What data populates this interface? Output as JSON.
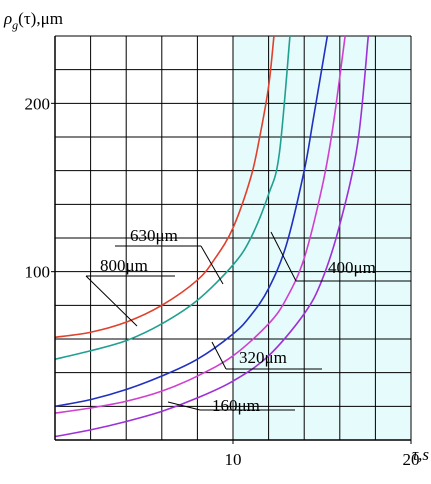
{
  "chart_data": {
    "type": "line",
    "ylabel": "ρ_g(τ),μm",
    "ylabel_parts": {
      "symbol": "ρ",
      "subscript": "g",
      "tail": "(τ),μm"
    },
    "xlabel": "τ,s",
    "xlim": [
      0,
      20
    ],
    "ylim": [
      0,
      240
    ],
    "x_ticks": [
      10,
      20
    ],
    "x_tick_labels": [
      "10",
      "20"
    ],
    "y_ticks": [
      100,
      200
    ],
    "y_tick_labels": [
      "100",
      "200"
    ],
    "grid": true,
    "grid_x_step": 2,
    "grid_y_step": 20,
    "background_colors": {
      "plain": "#ffffff",
      "tinted": "#e6fbfb"
    },
    "series": [
      {
        "name": "630μm",
        "color": "#e0402c",
        "x": [
          0,
          2,
          4,
          6,
          8,
          9,
          10,
          11,
          11.5,
          12,
          12.3
        ],
        "y": [
          61,
          64,
          70,
          80,
          95,
          108,
          126,
          156,
          180,
          210,
          240
        ]
      },
      {
        "name": "800μm",
        "color": "#20a090",
        "x": [
          0,
          2,
          4,
          6,
          8,
          10,
          11,
          12,
          12.6,
          13.2
        ],
        "y": [
          48,
          53,
          59,
          69,
          83,
          104,
          120,
          146,
          170,
          240
        ]
      },
      {
        "name": "400μm",
        "color": "#2030c0",
        "x": [
          0,
          2,
          4,
          6,
          8,
          10,
          11,
          12,
          13,
          14,
          14.5,
          15.3
        ],
        "y": [
          20,
          24,
          30,
          38,
          48,
          63,
          74,
          90,
          116,
          160,
          190,
          240
        ]
      },
      {
        "name": "320μm",
        "color": "#d040d0",
        "x": [
          0,
          2,
          4,
          6,
          8,
          10,
          12,
          13,
          14,
          15,
          15.6,
          16.3
        ],
        "y": [
          16,
          19,
          23,
          29,
          38,
          50,
          69,
          84,
          108,
          150,
          185,
          240
        ]
      },
      {
        "name": "160μm",
        "color": "#9d30d8",
        "x": [
          0,
          2,
          4,
          6,
          8,
          10,
          12,
          14,
          15,
          16,
          17,
          17.6
        ],
        "y": [
          2,
          6,
          11,
          17,
          25,
          35,
          50,
          75,
          95,
          128,
          176,
          240
        ]
      }
    ],
    "annotations": [
      {
        "text": "630μm",
        "series": "630μm"
      },
      {
        "text": "800μm",
        "series": "800μm"
      },
      {
        "text": "400μm",
        "series": "400μm"
      },
      {
        "text": "320μm",
        "series": "320μm"
      },
      {
        "text": "160μm",
        "series": "160μm"
      }
    ]
  }
}
